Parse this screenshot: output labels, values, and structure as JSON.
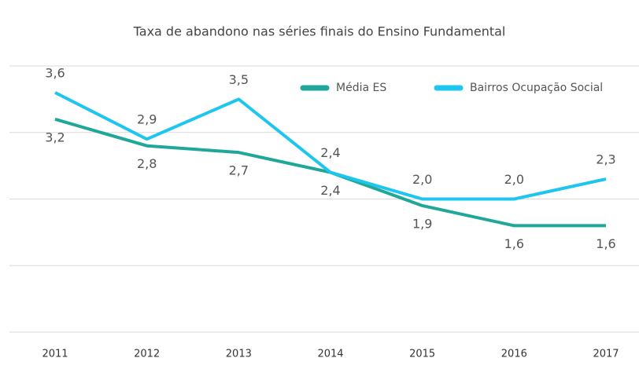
{
  "chart_data": {
    "type": "line",
    "title": "Taxa de abandono nas séries finais do Ensino Fundamental",
    "categories": [
      "2011",
      "2012",
      "2013",
      "2014",
      "2015",
      "2016",
      "2017"
    ],
    "series": [
      {
        "name": "Média ES",
        "color": "#1fa899",
        "values": [
          3.2,
          2.8,
          2.7,
          2.4,
          1.9,
          1.6,
          1.6
        ],
        "value_labels": [
          "3,2",
          "2,8",
          "2,7",
          "2,4",
          "1,9",
          "1,6",
          "1,6"
        ]
      },
      {
        "name": "Bairros Ocupação Social",
        "color": "#1ec6ef",
        "values": [
          3.6,
          2.9,
          3.5,
          2.4,
          2.0,
          2.0,
          2.3
        ],
        "value_labels": [
          "3,6",
          "2,9",
          "3,5",
          "2,4",
          "2,0",
          "2,0",
          "2,3"
        ]
      }
    ],
    "ylim": [
      0,
      4
    ],
    "yticks": [
      0,
      1,
      2,
      3,
      4
    ],
    "grid": true,
    "legend": "top-right"
  }
}
